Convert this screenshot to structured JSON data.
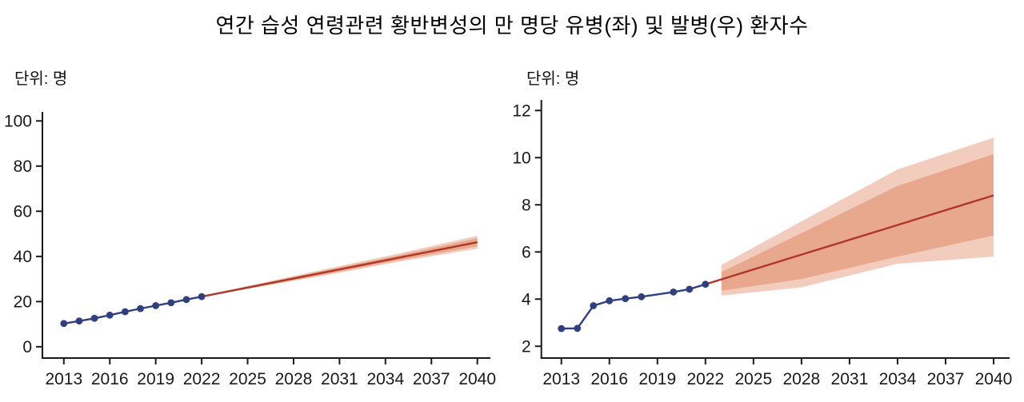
{
  "page": {
    "title": "연간 습성 연령관련 황반변성의 만 명당 유병(좌) 및 발병(우) 환자수"
  },
  "chart_data": [
    {
      "type": "line",
      "name": "prevalence-per-10000-left",
      "unit_label": "단위: 명",
      "xlabel": "",
      "ylabel": "",
      "grid": false,
      "legend": "none",
      "xlim": [
        2011.6,
        2040.8
      ],
      "ylim": [
        -5,
        104
      ],
      "x_ticks": [
        2013,
        2016,
        2019,
        2022,
        2025,
        2028,
        2031,
        2034,
        2037,
        2040
      ],
      "y_ticks": [
        0,
        20,
        40,
        60,
        80,
        100
      ],
      "observed": {
        "years": [
          2013,
          2014,
          2015,
          2016,
          2017,
          2018,
          2019,
          2020,
          2021,
          2022
        ],
        "values": [
          10.3,
          11.4,
          12.6,
          14.0,
          15.5,
          16.9,
          18.2,
          19.5,
          20.9,
          22.2
        ]
      },
      "projection": {
        "years": [
          2022,
          2040
        ],
        "values": [
          22.2,
          46.3
        ]
      },
      "bands": [
        {
          "name": "outer-confidence-band",
          "years": [
            2022.8,
            2030,
            2035,
            2040
          ],
          "upper": [
            23.6,
            34.3,
            41.5,
            49.2
          ],
          "lower": [
            23.0,
            31.5,
            37.8,
            43.4
          ],
          "color": "#f2cdbd"
        },
        {
          "name": "inner-confidence-band",
          "years": [
            2022.8,
            2030,
            2035,
            2040
          ],
          "upper": [
            23.5,
            33.8,
            40.7,
            48.1
          ],
          "lower": [
            23.1,
            32.0,
            38.5,
            44.4
          ],
          "color": "#e8a88e"
        }
      ],
      "colors": {
        "observed": "#2f3f7f",
        "projection": "#b03727",
        "axis": "#1a1a1a"
      }
    },
    {
      "type": "line",
      "name": "incidence-per-10000-right",
      "unit_label": "단위: 명",
      "xlabel": "",
      "ylabel": "",
      "grid": false,
      "legend": "none",
      "xlim": [
        2011.75,
        2040.9
      ],
      "ylim": [
        1.5,
        12.45
      ],
      "x_ticks": [
        2013,
        2016,
        2019,
        2022,
        2025,
        2028,
        2031,
        2034,
        2037,
        2040
      ],
      "y_ticks": [
        2,
        4,
        6,
        8,
        10,
        12
      ],
      "observed": {
        "years": [
          2013,
          2014,
          2015,
          2016,
          2017,
          2018,
          2020,
          2021,
          2022
        ],
        "values": [
          2.75,
          2.76,
          3.72,
          3.93,
          4.02,
          4.1,
          4.3,
          4.42,
          4.63
        ]
      },
      "projection": {
        "years": [
          2022,
          2040
        ],
        "values": [
          4.63,
          8.4
        ]
      },
      "bands": [
        {
          "name": "outer-confidence-band",
          "years": [
            2023,
            2028,
            2034,
            2040
          ],
          "upper": [
            5.45,
            7.3,
            9.5,
            10.85
          ],
          "lower": [
            4.15,
            4.5,
            5.5,
            5.8
          ],
          "color": "#f2cdbd"
        },
        {
          "name": "inner-confidence-band",
          "years": [
            2023,
            2028,
            2034,
            2040
          ],
          "upper": [
            5.15,
            6.8,
            8.8,
            10.15
          ],
          "lower": [
            4.35,
            4.85,
            5.8,
            6.7
          ],
          "color": "#e8a88e"
        }
      ],
      "colors": {
        "observed": "#2f3f7f",
        "projection": "#b03727",
        "axis": "#1a1a1a"
      }
    }
  ]
}
